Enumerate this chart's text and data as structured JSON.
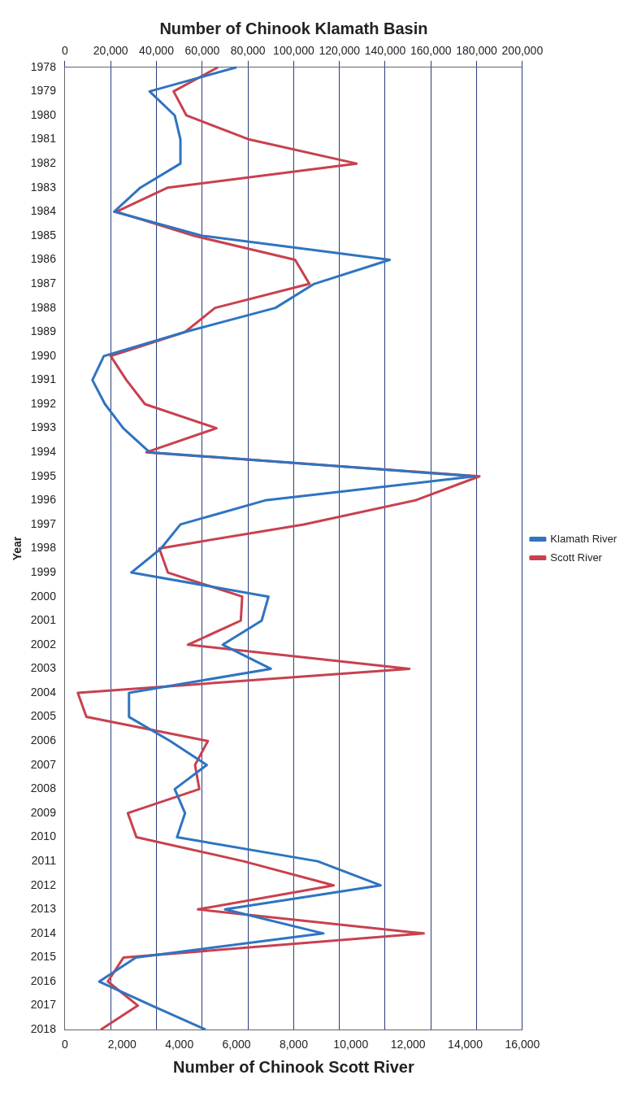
{
  "chart_data": {
    "type": "line",
    "orientation": "horizontal",
    "xlabel": "Number of Chinook Klamath Basin",
    "x2label": "Number of Chinook Scott River",
    "ylabel": "Year",
    "categories": [
      "1978",
      "1979",
      "1980",
      "1981",
      "1982",
      "1983",
      "1984",
      "1985",
      "1986",
      "1987",
      "1988",
      "1989",
      "1990",
      "1991",
      "1992",
      "1993",
      "1994",
      "1995",
      "1996",
      "1997",
      "1998",
      "1999",
      "2000",
      "2001",
      "2002",
      "2003",
      "2004",
      "2005",
      "2006",
      "2007",
      "2008",
      "2009",
      "2010",
      "2011",
      "2012",
      "2013",
      "2014",
      "2015",
      "2016",
      "2017",
      "2018"
    ],
    "series": [
      {
        "name": "Klamath River",
        "color": "#2f74c0",
        "values": [
          75000,
          37000,
          48000,
          50500,
          50500,
          33000,
          21500,
          60000,
          142000,
          109000,
          92000,
          52500,
          17000,
          12000,
          17500,
          25500,
          37000,
          179000,
          87500,
          50500,
          42000,
          29000,
          89000,
          86000,
          69000,
          90000,
          28000,
          28000,
          46000,
          62000,
          48000,
          52500,
          49000,
          110500,
          138000,
          70000,
          113000,
          31000,
          15000,
          38000,
          61500
        ]
      },
      {
        "name": "Scott River",
        "color": "#c8414f",
        "axis": "x2",
        "values": [
          5350,
          3800,
          4250,
          6450,
          10200,
          3600,
          1800,
          4500,
          8050,
          8550,
          5250,
          4200,
          1600,
          2150,
          2800,
          5300,
          2850,
          14500,
          12250,
          8350,
          3300,
          3600,
          6200,
          6150,
          4300,
          12050,
          450,
          750,
          5000,
          4550,
          4700,
          2200,
          2500,
          6250,
          9400,
          4650,
          12550,
          2050,
          1500,
          2550,
          1250
        ]
      }
    ],
    "xlim": [
      0,
      200000
    ],
    "xticks": [
      0,
      {
        "value": 20000,
        "label": "20,000"
      },
      {
        "value": 40000,
        "label": "40,000"
      },
      {
        "value": 60000,
        "label": "60,000"
      },
      {
        "value": 80000,
        "label": "80,000"
      },
      {
        "value": 100000,
        "label": "100,000"
      },
      {
        "value": 120000,
        "label": "120,000"
      },
      {
        "value": 140000,
        "label": "140,000"
      },
      {
        "value": 160000,
        "label": "160,000"
      },
      {
        "value": 180000,
        "label": "180,000"
      },
      {
        "value": 200000,
        "label": "200,000"
      }
    ],
    "x2lim": [
      0,
      16000
    ],
    "x2ticks": [
      0,
      {
        "value": 2000,
        "label": "2,000"
      },
      {
        "value": 4000,
        "label": "4,000"
      },
      {
        "value": 6000,
        "label": "6,000"
      },
      {
        "value": 8000,
        "label": "8,000"
      },
      {
        "value": 10000,
        "label": "10,000"
      },
      {
        "value": 12000,
        "label": "12,000"
      },
      {
        "value": 14000,
        "label": "14,000"
      },
      {
        "value": 16000,
        "label": "16,000"
      }
    ],
    "grid": "x",
    "legend": "right",
    "marker": "none",
    "line_style": "solid"
  }
}
